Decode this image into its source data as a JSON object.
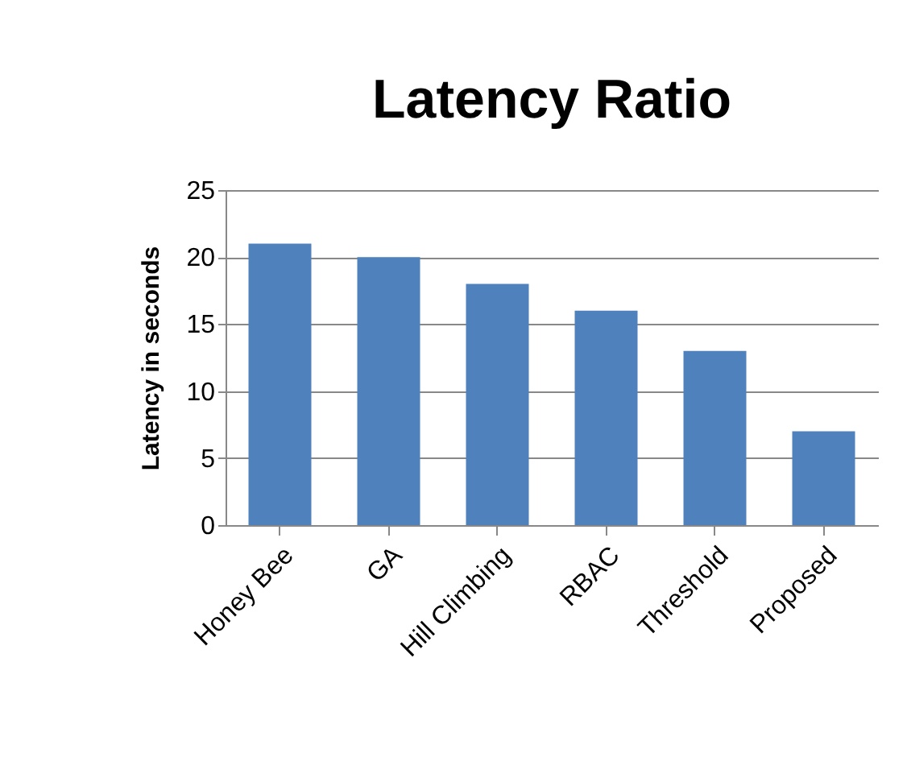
{
  "chart_data": {
    "type": "bar",
    "title": "Latency Ratio",
    "ylabel": "Latency in seconds",
    "categories": [
      "Honey Bee",
      "GA",
      "Hill Climbing",
      "RBAC",
      "Threshold",
      "Proposed"
    ],
    "values": [
      21,
      20,
      18,
      16,
      13,
      7
    ],
    "color": "#4f81bd",
    "ylim": [
      0,
      25
    ],
    "yticks": [
      0,
      5,
      10,
      15,
      20,
      25
    ],
    "grid": "y"
  }
}
